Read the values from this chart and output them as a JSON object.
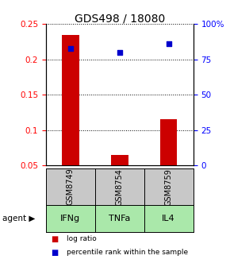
{
  "title": "GDS498 / 18080",
  "samples": [
    "GSM8749",
    "GSM8754",
    "GSM8759"
  ],
  "agents": [
    "IFNg",
    "TNFa",
    "IL4"
  ],
  "log_ratios": [
    0.235,
    0.065,
    0.115
  ],
  "percentile_ranks": [
    83,
    80,
    86
  ],
  "ylim_left": [
    0.05,
    0.25
  ],
  "ylim_right": [
    0,
    100
  ],
  "yticks_left": [
    0.05,
    0.1,
    0.15,
    0.2,
    0.25
  ],
  "yticks_left_labels": [
    "0.05",
    "0.1",
    "0.15",
    "0.2",
    "0.25"
  ],
  "yticks_right": [
    0,
    25,
    50,
    75,
    100
  ],
  "yticks_right_labels": [
    "0",
    "25",
    "50",
    "75",
    "100%"
  ],
  "bar_color": "#cc0000",
  "point_color": "#0000cc",
  "gray_box_color": "#c8c8c8",
  "agent_box_color": "#aae8aa",
  "title_fontsize": 10,
  "tick_fontsize": 7.5,
  "bar_width": 0.35
}
